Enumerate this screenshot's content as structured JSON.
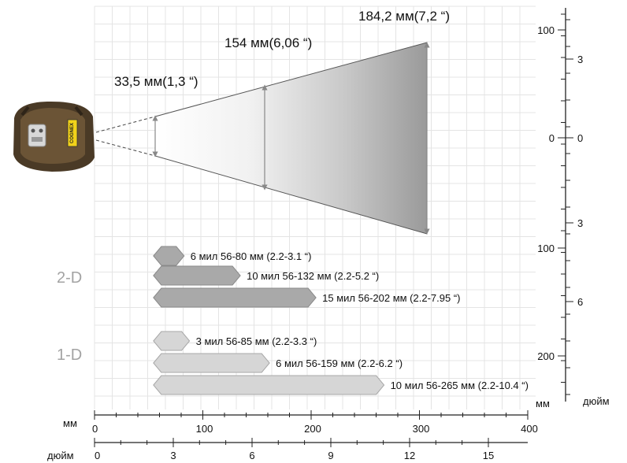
{
  "dimensions": {
    "near": "33,5 мм(1,3 “)",
    "mid": "154 мм(6,06 “)",
    "far": "184,2 мм(7,2 “)"
  },
  "sections": {
    "two_d": "2-D",
    "one_d": "1-D"
  },
  "bars_2d": [
    {
      "label": "6 мил 56-80 мм (2.2-3.1 “)",
      "start_mm": 56,
      "end_mm": 80
    },
    {
      "label": "10 мил 56-132 мм (2.2-5.2 “)",
      "start_mm": 56,
      "end_mm": 132
    },
    {
      "label": "15 мил 56-202 мм (2.2-7.95 “)",
      "start_mm": 56,
      "end_mm": 202
    }
  ],
  "bars_1d": [
    {
      "label": "3 мил 56-85 мм (2.2-3.3 “)",
      "start_mm": 56,
      "end_mm": 85
    },
    {
      "label": "6 мил 56-159 мм (2.2-6.2 “)",
      "start_mm": 56,
      "end_mm": 159
    },
    {
      "label": "10 мил 56-265 мм (2.2-10.4 “)",
      "start_mm": 56,
      "end_mm": 265
    }
  ],
  "bottom_axis": {
    "mm_label": "мм",
    "inch_label": "дюйм",
    "mm_ticks": [
      "0",
      "100",
      "200",
      "300",
      "400"
    ],
    "inch_ticks": [
      "0",
      "3",
      "6",
      "9",
      "12",
      "15"
    ]
  },
  "right_axis": {
    "mm_label": "мм",
    "inch_label": "дюйм",
    "mm_ticks": [
      "100",
      "0",
      "100",
      "200"
    ],
    "inch_ticks": [
      "3",
      "0",
      "3",
      "6"
    ]
  },
  "device": {
    "brand_text": "COGNEX"
  },
  "colors": {
    "bar_2d": "#a9a9a9",
    "bar_1d": "#d6d6d6",
    "grid": "#e4e4e4",
    "device_body": "#4a3a26"
  }
}
